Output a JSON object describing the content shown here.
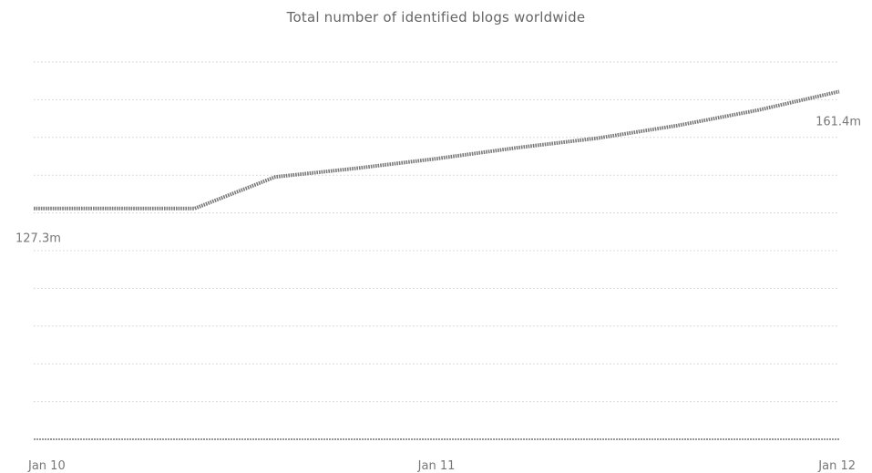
{
  "chart_data": {
    "type": "line",
    "title": "Total number of identified blogs worldwide",
    "xlabel": "",
    "ylabel": "",
    "x_tick_labels": [
      "Jan 10",
      "Jan 11",
      "Jan 12"
    ],
    "x": [
      0,
      1,
      2,
      3,
      4,
      5,
      6,
      7,
      8,
      9,
      10
    ],
    "series": [
      {
        "values": [
          127.3,
          127.3,
          127.3,
          136.5,
          139.0,
          141.8,
          145.0,
          147.8,
          151.5,
          156.0,
          161.4
        ]
      }
    ],
    "data_labels": [
      {
        "point_index": 0,
        "text": "127.3m"
      },
      {
        "point_index": 10,
        "text": "161.4m"
      }
    ],
    "ylim": [
      60,
      170
    ],
    "grid": true,
    "legend": "none",
    "line_color": "#7a7a7a",
    "grid_color": "#cfcfcf"
  }
}
